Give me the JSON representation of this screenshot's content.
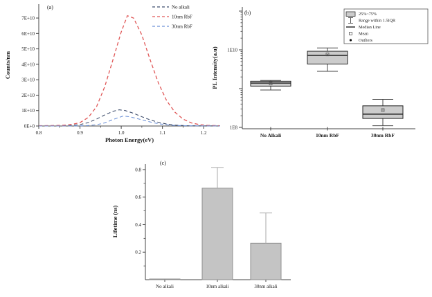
{
  "canvas": {
    "background": "#ffffff"
  },
  "chart_data": [
    {
      "type": "line",
      "panel_label": "(a)",
      "xlabel": "Photon Energy(eV)",
      "ylabel": "Counts/nm",
      "xlim": [
        0.8,
        1.24
      ],
      "ylim": [
        0,
        79000000000.0
      ],
      "x_ticks": [
        0.8,
        0.9,
        1.0,
        1.1,
        1.2
      ],
      "x_minor_ticks": [
        0.85,
        0.95,
        1.05,
        1.15
      ],
      "y_tick_labels": [
        "0E+0",
        "1E+10",
        "2E+10",
        "3E+10",
        "4E+10",
        "5E+10",
        "6E+10",
        "7E+10"
      ],
      "legend_position": "top-right",
      "series": [
        {
          "name": "No alkali",
          "color": "#3f4e6d",
          "dashed": true,
          "points": [
            [
              0.8,
              0
            ],
            [
              0.84,
              100000000.0
            ],
            [
              0.86,
              200000000.0
            ],
            [
              0.88,
              400000000.0
            ],
            [
              0.9,
              900000000.0
            ],
            [
              0.92,
              2200000000.0
            ],
            [
              0.94,
              4500000000.0
            ],
            [
              0.96,
              7200000000.0
            ],
            [
              0.98,
              9500000000.0
            ],
            [
              0.995,
              10500000000.0
            ],
            [
              1.01,
              10000000000.0
            ],
            [
              1.03,
              8200000000.0
            ],
            [
              1.05,
              6000000000.0
            ],
            [
              1.07,
              4000000000.0
            ],
            [
              1.09,
              2400000000.0
            ],
            [
              1.11,
              1300000000.0
            ],
            [
              1.13,
              600000000.0
            ],
            [
              1.16,
              200000000.0
            ],
            [
              1.2,
              100000000.0
            ],
            [
              1.24,
              50000000.0
            ]
          ]
        },
        {
          "name": "10nm RbF",
          "color": "#e05858",
          "dashed": true,
          "points": [
            [
              0.8,
              200000000.0
            ],
            [
              0.84,
              300000000.0
            ],
            [
              0.86,
              500000000.0
            ],
            [
              0.88,
              1000000000.0
            ],
            [
              0.9,
              2200000000.0
            ],
            [
              0.92,
              5500000000.0
            ],
            [
              0.94,
              12500000000.0
            ],
            [
              0.96,
              25500000000.0
            ],
            [
              0.98,
              43000000000.0
            ],
            [
              1.0,
              61000000000.0
            ],
            [
              1.015,
              71500000000.0
            ],
            [
              1.03,
              70000000000.0
            ],
            [
              1.05,
              59000000000.0
            ],
            [
              1.07,
              43000000000.0
            ],
            [
              1.09,
              28000000000.0
            ],
            [
              1.11,
              16500000000.0
            ],
            [
              1.13,
              9000000000.0
            ],
            [
              1.15,
              4500000000.0
            ],
            [
              1.17,
              2000000000.0
            ],
            [
              1.19,
              900000000.0
            ],
            [
              1.21,
              400000000.0
            ],
            [
              1.24,
              200000000.0
            ]
          ]
        },
        {
          "name": "30nm RbF",
          "color": "#6e92d8",
          "dashed": true,
          "points": [
            [
              0.8,
              0
            ],
            [
              0.9,
              100000000.0
            ],
            [
              0.92,
              300000000.0
            ],
            [
              0.94,
              800000000.0
            ],
            [
              0.96,
              2000000000.0
            ],
            [
              0.98,
              4200000000.0
            ],
            [
              1.005,
              6500000000.0
            ],
            [
              1.02,
              6000000000.0
            ],
            [
              1.04,
              4700000000.0
            ],
            [
              1.06,
              3300000000.0
            ],
            [
              1.08,
              2000000000.0
            ],
            [
              1.1,
              1100000000.0
            ],
            [
              1.12,
              500000000.0
            ],
            [
              1.15,
              200000000.0
            ],
            [
              1.2,
              100000000.0
            ],
            [
              1.24,
              50000000.0
            ]
          ]
        }
      ]
    },
    {
      "type": "box",
      "panel_label": "(b)",
      "ylabel": "PL Intensity(a.u)",
      "yscale": "log",
      "ylim": [
        100000000.0,
        130000000000.0
      ],
      "y_tick_labels": [
        {
          "value": 100000000.0,
          "label": "1E8"
        },
        {
          "value": 10000000000.0,
          "label": "1E10"
        }
      ],
      "categories": [
        "No Alkali",
        "10nm RbF",
        "30nm RbF"
      ],
      "boxes": [
        {
          "category": "No Alkali",
          "whisker_low": 920000000.0,
          "q1": 1160000000.0,
          "median": 1390000000.0,
          "q3": 1550000000.0,
          "whisker_high": 1620000000.0,
          "mean": 1350000000.0
        },
        {
          "category": "10nm RbF",
          "whisker_low": 2800000000.0,
          "q1": 4300000000.0,
          "median": 7200000000.0,
          "q3": 9200000000.0,
          "whisker_high": 11200000000.0,
          "mean": 7600000000.0
        },
        {
          "category": "30nm RbF",
          "whisker_low": 110000000.0,
          "q1": 170000000.0,
          "median": 220000000.0,
          "q3": 360000000.0,
          "whisker_high": 530000000.0,
          "mean": 280000000.0
        }
      ],
      "box_fill": "#cccccc",
      "legend_items": [
        "25%~75%",
        "Range within 1.5IQR",
        "Median Line",
        "Mean",
        "Outliers"
      ],
      "legend_position": "top-right"
    },
    {
      "type": "bar",
      "panel_label": "(c)",
      "ylabel": "Lifetime (ns)",
      "categories": [
        "No alkali",
        "10nm alkali",
        "30nm alkali"
      ],
      "values": [
        0.005,
        0.665,
        0.265
      ],
      "errors_plus": [
        0,
        0.15,
        0.22
      ],
      "y_ticks": [
        0.2,
        0.4,
        0.6,
        0.8
      ],
      "y_minor_ticks": [
        0.1,
        0.3,
        0.5,
        0.7
      ],
      "ylim": [
        0,
        0.84
      ],
      "bar_color": "#c4c4c4",
      "bar_edge": "#8f8f8f",
      "error_color": "#b0b0b0"
    }
  ]
}
